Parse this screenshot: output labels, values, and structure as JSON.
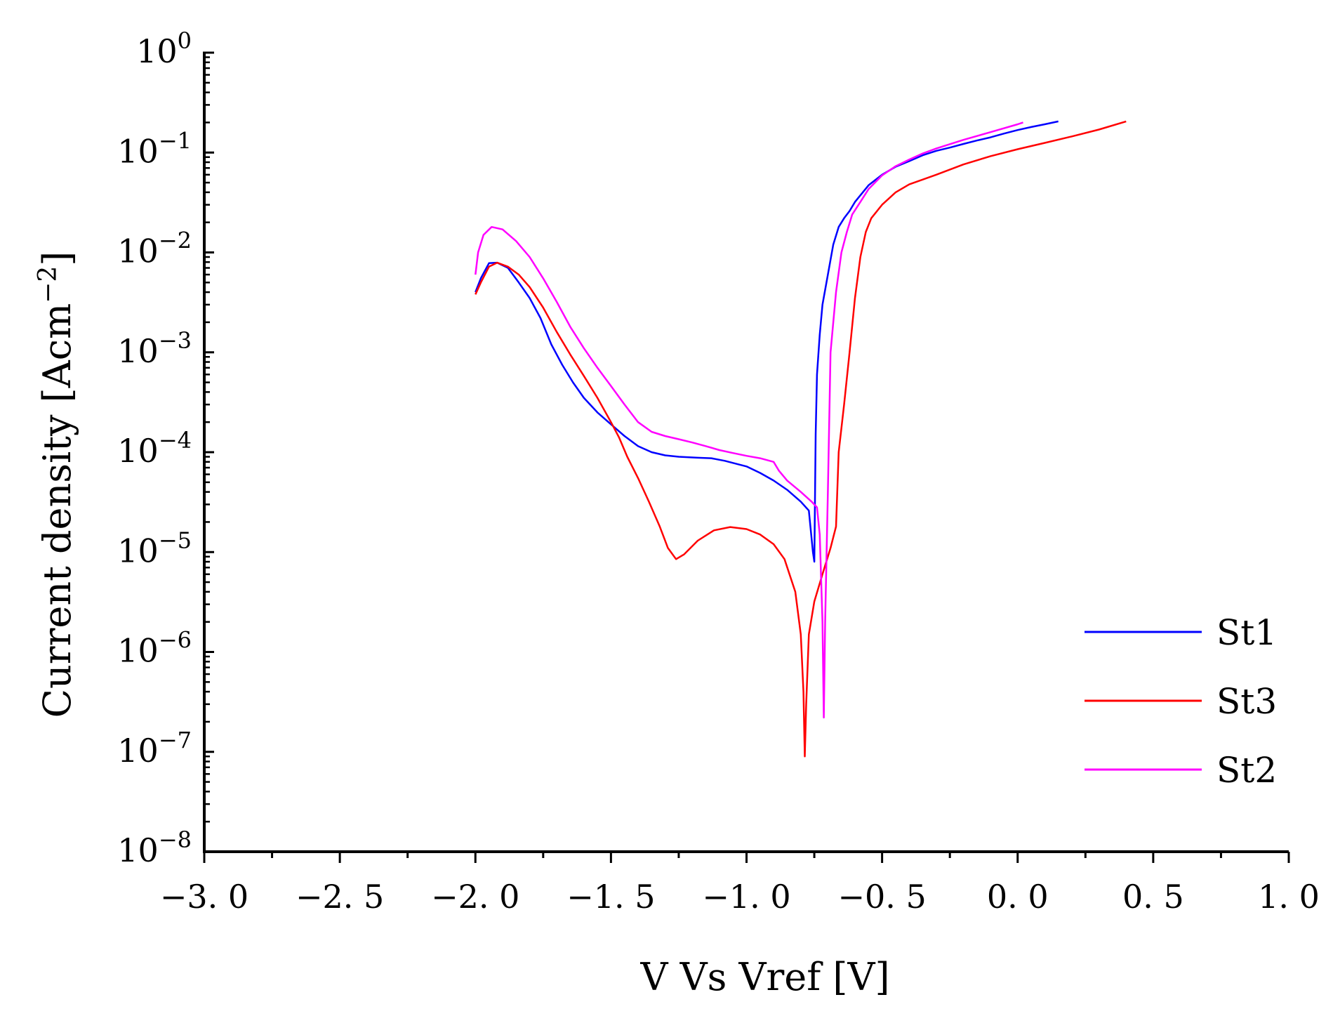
{
  "chart_data": {
    "type": "line",
    "title": "",
    "xlabel": "V Vs Vref [V]",
    "ylabel": "Current density [Acm",
    "ylabel_exp": "−2",
    "ylabel_close": "]",
    "xlim": [
      -3.0,
      1.0
    ],
    "ylim": [
      1e-08,
      1
    ],
    "yscale": "log",
    "x_ticks": [
      -3.0,
      -2.5,
      -2.0,
      -1.5,
      -1.0,
      -0.5,
      0.0,
      0.5,
      1.0
    ],
    "x_tick_labels": [
      "−3. 0",
      "−2. 5",
      "−2. 0",
      "−1. 5",
      "−1. 0",
      "−0. 5",
      "0. 0",
      "0. 5",
      "1. 0"
    ],
    "y_ticks": [
      {
        "base": "10",
        "exp": "0"
      },
      {
        "base": "10",
        "exp": "−1"
      },
      {
        "base": "10",
        "exp": "−2"
      },
      {
        "base": "10",
        "exp": "−3"
      },
      {
        "base": "10",
        "exp": "−4"
      },
      {
        "base": "10",
        "exp": "−5"
      },
      {
        "base": "10",
        "exp": "−6"
      },
      {
        "base": "10",
        "exp": "−7"
      },
      {
        "base": "10",
        "exp": "−8"
      }
    ],
    "legend_position": "bottom-right",
    "series": [
      {
        "name": "St1",
        "color": "#0000ff",
        "points": [
          [
            -2.0,
            0.004
          ],
          [
            -1.98,
            0.0055
          ],
          [
            -1.95,
            0.0078
          ],
          [
            -1.92,
            0.0079
          ],
          [
            -1.88,
            0.007
          ],
          [
            -1.84,
            0.005
          ],
          [
            -1.8,
            0.0035
          ],
          [
            -1.76,
            0.0022
          ],
          [
            -1.72,
            0.0012
          ],
          [
            -1.68,
            0.00075
          ],
          [
            -1.64,
            0.0005
          ],
          [
            -1.6,
            0.00035
          ],
          [
            -1.55,
            0.00025
          ],
          [
            -1.5,
            0.00019
          ],
          [
            -1.45,
            0.000145
          ],
          [
            -1.4,
            0.000115
          ],
          [
            -1.35,
            0.0001
          ],
          [
            -1.3,
            9.3e-05
          ],
          [
            -1.25,
            9e-05
          ],
          [
            -1.18,
            8.8e-05
          ],
          [
            -1.13,
            8.7e-05
          ],
          [
            -1.08,
            8.2e-05
          ],
          [
            -1.0,
            7.2e-05
          ],
          [
            -0.95,
            6.2e-05
          ],
          [
            -0.9,
            5.2e-05
          ],
          [
            -0.85,
            4.2e-05
          ],
          [
            -0.8,
            3.2e-05
          ],
          [
            -0.77,
            2.6e-05
          ],
          [
            -0.755,
            1e-05
          ],
          [
            -0.75,
            8e-06
          ],
          [
            -0.745,
            0.00015
          ],
          [
            -0.74,
            0.0006
          ],
          [
            -0.73,
            0.0015
          ],
          [
            -0.72,
            0.003
          ],
          [
            -0.7,
            0.006
          ],
          [
            -0.68,
            0.012
          ],
          [
            -0.66,
            0.018
          ],
          [
            -0.64,
            0.022
          ],
          [
            -0.62,
            0.026
          ],
          [
            -0.6,
            0.032
          ],
          [
            -0.55,
            0.047
          ],
          [
            -0.5,
            0.06
          ],
          [
            -0.45,
            0.072
          ],
          [
            -0.4,
            0.082
          ],
          [
            -0.35,
            0.094
          ],
          [
            -0.3,
            0.104
          ],
          [
            -0.25,
            0.112
          ],
          [
            -0.2,
            0.122
          ],
          [
            -0.15,
            0.132
          ],
          [
            -0.1,
            0.142
          ],
          [
            -0.05,
            0.155
          ],
          [
            0.0,
            0.168
          ],
          [
            0.05,
            0.18
          ],
          [
            0.1,
            0.192
          ],
          [
            0.15,
            0.205
          ]
        ]
      },
      {
        "name": "St3",
        "color": "#ff0000",
        "points": [
          [
            -2.0,
            0.0038
          ],
          [
            -1.98,
            0.005
          ],
          [
            -1.95,
            0.0072
          ],
          [
            -1.92,
            0.0079
          ],
          [
            -1.88,
            0.0072
          ],
          [
            -1.84,
            0.006
          ],
          [
            -1.8,
            0.0045
          ],
          [
            -1.75,
            0.0028
          ],
          [
            -1.7,
            0.0016
          ],
          [
            -1.65,
            0.00095
          ],
          [
            -1.6,
            0.00058
          ],
          [
            -1.55,
            0.00035
          ],
          [
            -1.5,
            0.0002
          ],
          [
            -1.47,
            0.00014
          ],
          [
            -1.44,
            9e-05
          ],
          [
            -1.4,
            5.5e-05
          ],
          [
            -1.36,
            3.2e-05
          ],
          [
            -1.32,
            1.8e-05
          ],
          [
            -1.29,
            1.1e-05
          ],
          [
            -1.26,
            8.5e-06
          ],
          [
            -1.23,
            9.5e-06
          ],
          [
            -1.18,
            1.3e-05
          ],
          [
            -1.12,
            1.65e-05
          ],
          [
            -1.06,
            1.78e-05
          ],
          [
            -1.0,
            1.7e-05
          ],
          [
            -0.95,
            1.5e-05
          ],
          [
            -0.9,
            1.2e-05
          ],
          [
            -0.86,
            8.5e-06
          ],
          [
            -0.82,
            4e-06
          ],
          [
            -0.8,
            1.5e-06
          ],
          [
            -0.79,
            4e-07
          ],
          [
            -0.785,
            9e-08
          ],
          [
            -0.78,
            3e-07
          ],
          [
            -0.77,
            1.5e-06
          ],
          [
            -0.75,
            3.2e-06
          ],
          [
            -0.72,
            6e-06
          ],
          [
            -0.69,
            1.1e-05
          ],
          [
            -0.67,
            1.8e-05
          ],
          [
            -0.66,
            0.0001
          ],
          [
            -0.64,
            0.0003
          ],
          [
            -0.62,
            0.001
          ],
          [
            -0.6,
            0.0035
          ],
          [
            -0.58,
            0.009
          ],
          [
            -0.56,
            0.016
          ],
          [
            -0.54,
            0.022
          ],
          [
            -0.5,
            0.03
          ],
          [
            -0.45,
            0.04
          ],
          [
            -0.4,
            0.048
          ],
          [
            -0.3,
            0.06
          ],
          [
            -0.2,
            0.076
          ],
          [
            -0.1,
            0.092
          ],
          [
            0.0,
            0.108
          ],
          [
            0.1,
            0.125
          ],
          [
            0.2,
            0.145
          ],
          [
            0.3,
            0.17
          ],
          [
            0.4,
            0.205
          ]
        ]
      },
      {
        "name": "St2",
        "color": "#ff00ff",
        "points": [
          [
            -2.0,
            0.006
          ],
          [
            -1.99,
            0.01
          ],
          [
            -1.97,
            0.015
          ],
          [
            -1.94,
            0.018
          ],
          [
            -1.9,
            0.017
          ],
          [
            -1.85,
            0.013
          ],
          [
            -1.8,
            0.009
          ],
          [
            -1.75,
            0.0055
          ],
          [
            -1.7,
            0.0032
          ],
          [
            -1.65,
            0.0018
          ],
          [
            -1.6,
            0.0011
          ],
          [
            -1.55,
            0.0007
          ],
          [
            -1.5,
            0.00046
          ],
          [
            -1.45,
            0.0003
          ],
          [
            -1.4,
            0.0002
          ],
          [
            -1.35,
            0.00016
          ],
          [
            -1.3,
            0.000145
          ],
          [
            -1.25,
            0.000135
          ],
          [
            -1.2,
            0.000125
          ],
          [
            -1.15,
            0.000115
          ],
          [
            -1.1,
            0.000105
          ],
          [
            -1.05,
            9.8e-05
          ],
          [
            -1.0,
            9.2e-05
          ],
          [
            -0.95,
            8.7e-05
          ],
          [
            -0.9,
            8e-05
          ],
          [
            -0.88,
            6.5e-05
          ],
          [
            -0.85,
            5.2e-05
          ],
          [
            -0.8,
            4e-05
          ],
          [
            -0.76,
            3.2e-05
          ],
          [
            -0.74,
            2.8e-05
          ],
          [
            -0.73,
            1.5e-05
          ],
          [
            -0.72,
            2e-06
          ],
          [
            -0.715,
            2.2e-07
          ],
          [
            -0.71,
            2e-06
          ],
          [
            -0.7,
            4e-05
          ],
          [
            -0.69,
            0.001
          ],
          [
            -0.67,
            0.004
          ],
          [
            -0.65,
            0.01
          ],
          [
            -0.63,
            0.016
          ],
          [
            -0.61,
            0.024
          ],
          [
            -0.58,
            0.032
          ],
          [
            -0.55,
            0.043
          ],
          [
            -0.5,
            0.059
          ],
          [
            -0.45,
            0.073
          ],
          [
            -0.4,
            0.085
          ],
          [
            -0.35,
            0.098
          ],
          [
            -0.3,
            0.11
          ],
          [
            -0.2,
            0.134
          ],
          [
            -0.1,
            0.16
          ],
          [
            0.0,
            0.192
          ],
          [
            0.02,
            0.2
          ]
        ]
      }
    ]
  }
}
